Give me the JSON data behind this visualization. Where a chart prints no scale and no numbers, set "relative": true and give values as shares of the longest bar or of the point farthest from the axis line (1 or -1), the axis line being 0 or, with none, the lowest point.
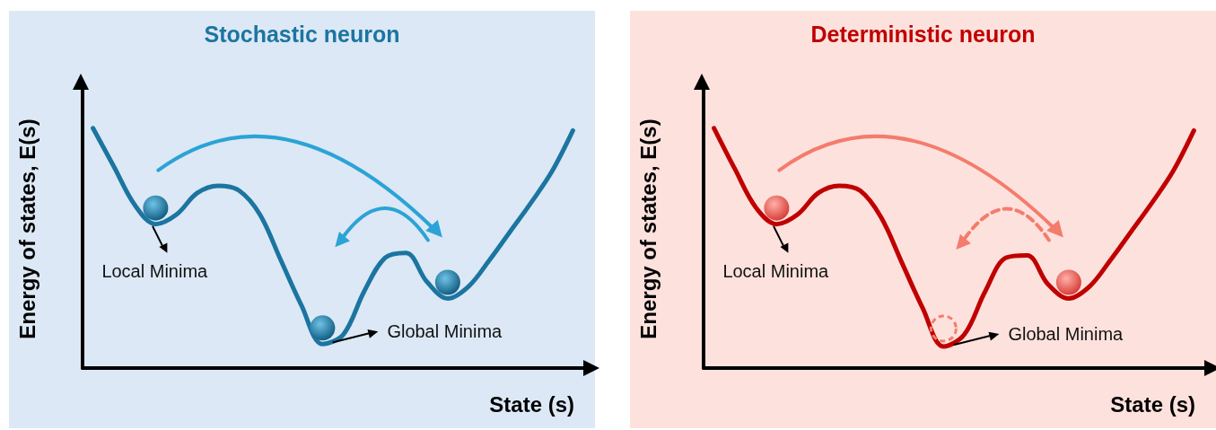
{
  "chart_data": [
    {
      "type": "line",
      "title": "Stochastic neuron",
      "xlabel": "State (s)",
      "ylabel": "Energy of states, E(s)",
      "relative": true,
      "categories": [
        null,
        null,
        null,
        null,
        null,
        null,
        null,
        null,
        null,
        null,
        null,
        null,
        null,
        null,
        null,
        null,
        null,
        null,
        null,
        null,
        null,
        null,
        null,
        null
      ],
      "series": [
        {
          "color": "#1b75a0",
          "values": [
            1.0,
            0.84,
            0.68,
            0.6,
            0.64,
            0.73,
            0.76,
            0.74,
            0.64,
            0.45,
            0.26,
            0.1,
            0.14,
            0.32,
            0.46,
            0.48,
            0.36,
            0.29,
            0.34,
            0.45,
            0.57,
            0.69,
            0.82,
            0.99
          ]
        }
      ],
      "annotations": [
        "Local Minima",
        "Global Minima"
      ]
    },
    {
      "type": "line",
      "title": "Deterministic neuron",
      "xlabel": "State (s)",
      "ylabel": "Energy of states, E(s)",
      "relative": true,
      "categories": [
        null,
        null,
        null,
        null,
        null,
        null,
        null,
        null,
        null,
        null,
        null,
        null,
        null,
        null,
        null,
        null,
        null,
        null,
        null,
        null,
        null,
        null,
        null,
        null
      ],
      "series": [
        {
          "color": "#c00000",
          "values": [
            1.0,
            0.83,
            0.67,
            0.6,
            0.64,
            0.73,
            0.76,
            0.74,
            0.63,
            0.44,
            0.25,
            0.09,
            0.14,
            0.32,
            0.46,
            0.47,
            0.35,
            0.29,
            0.34,
            0.45,
            0.57,
            0.69,
            0.82,
            0.99
          ]
        }
      ],
      "annotations": [
        "Local Minima",
        "Global Minima"
      ]
    }
  ]
}
